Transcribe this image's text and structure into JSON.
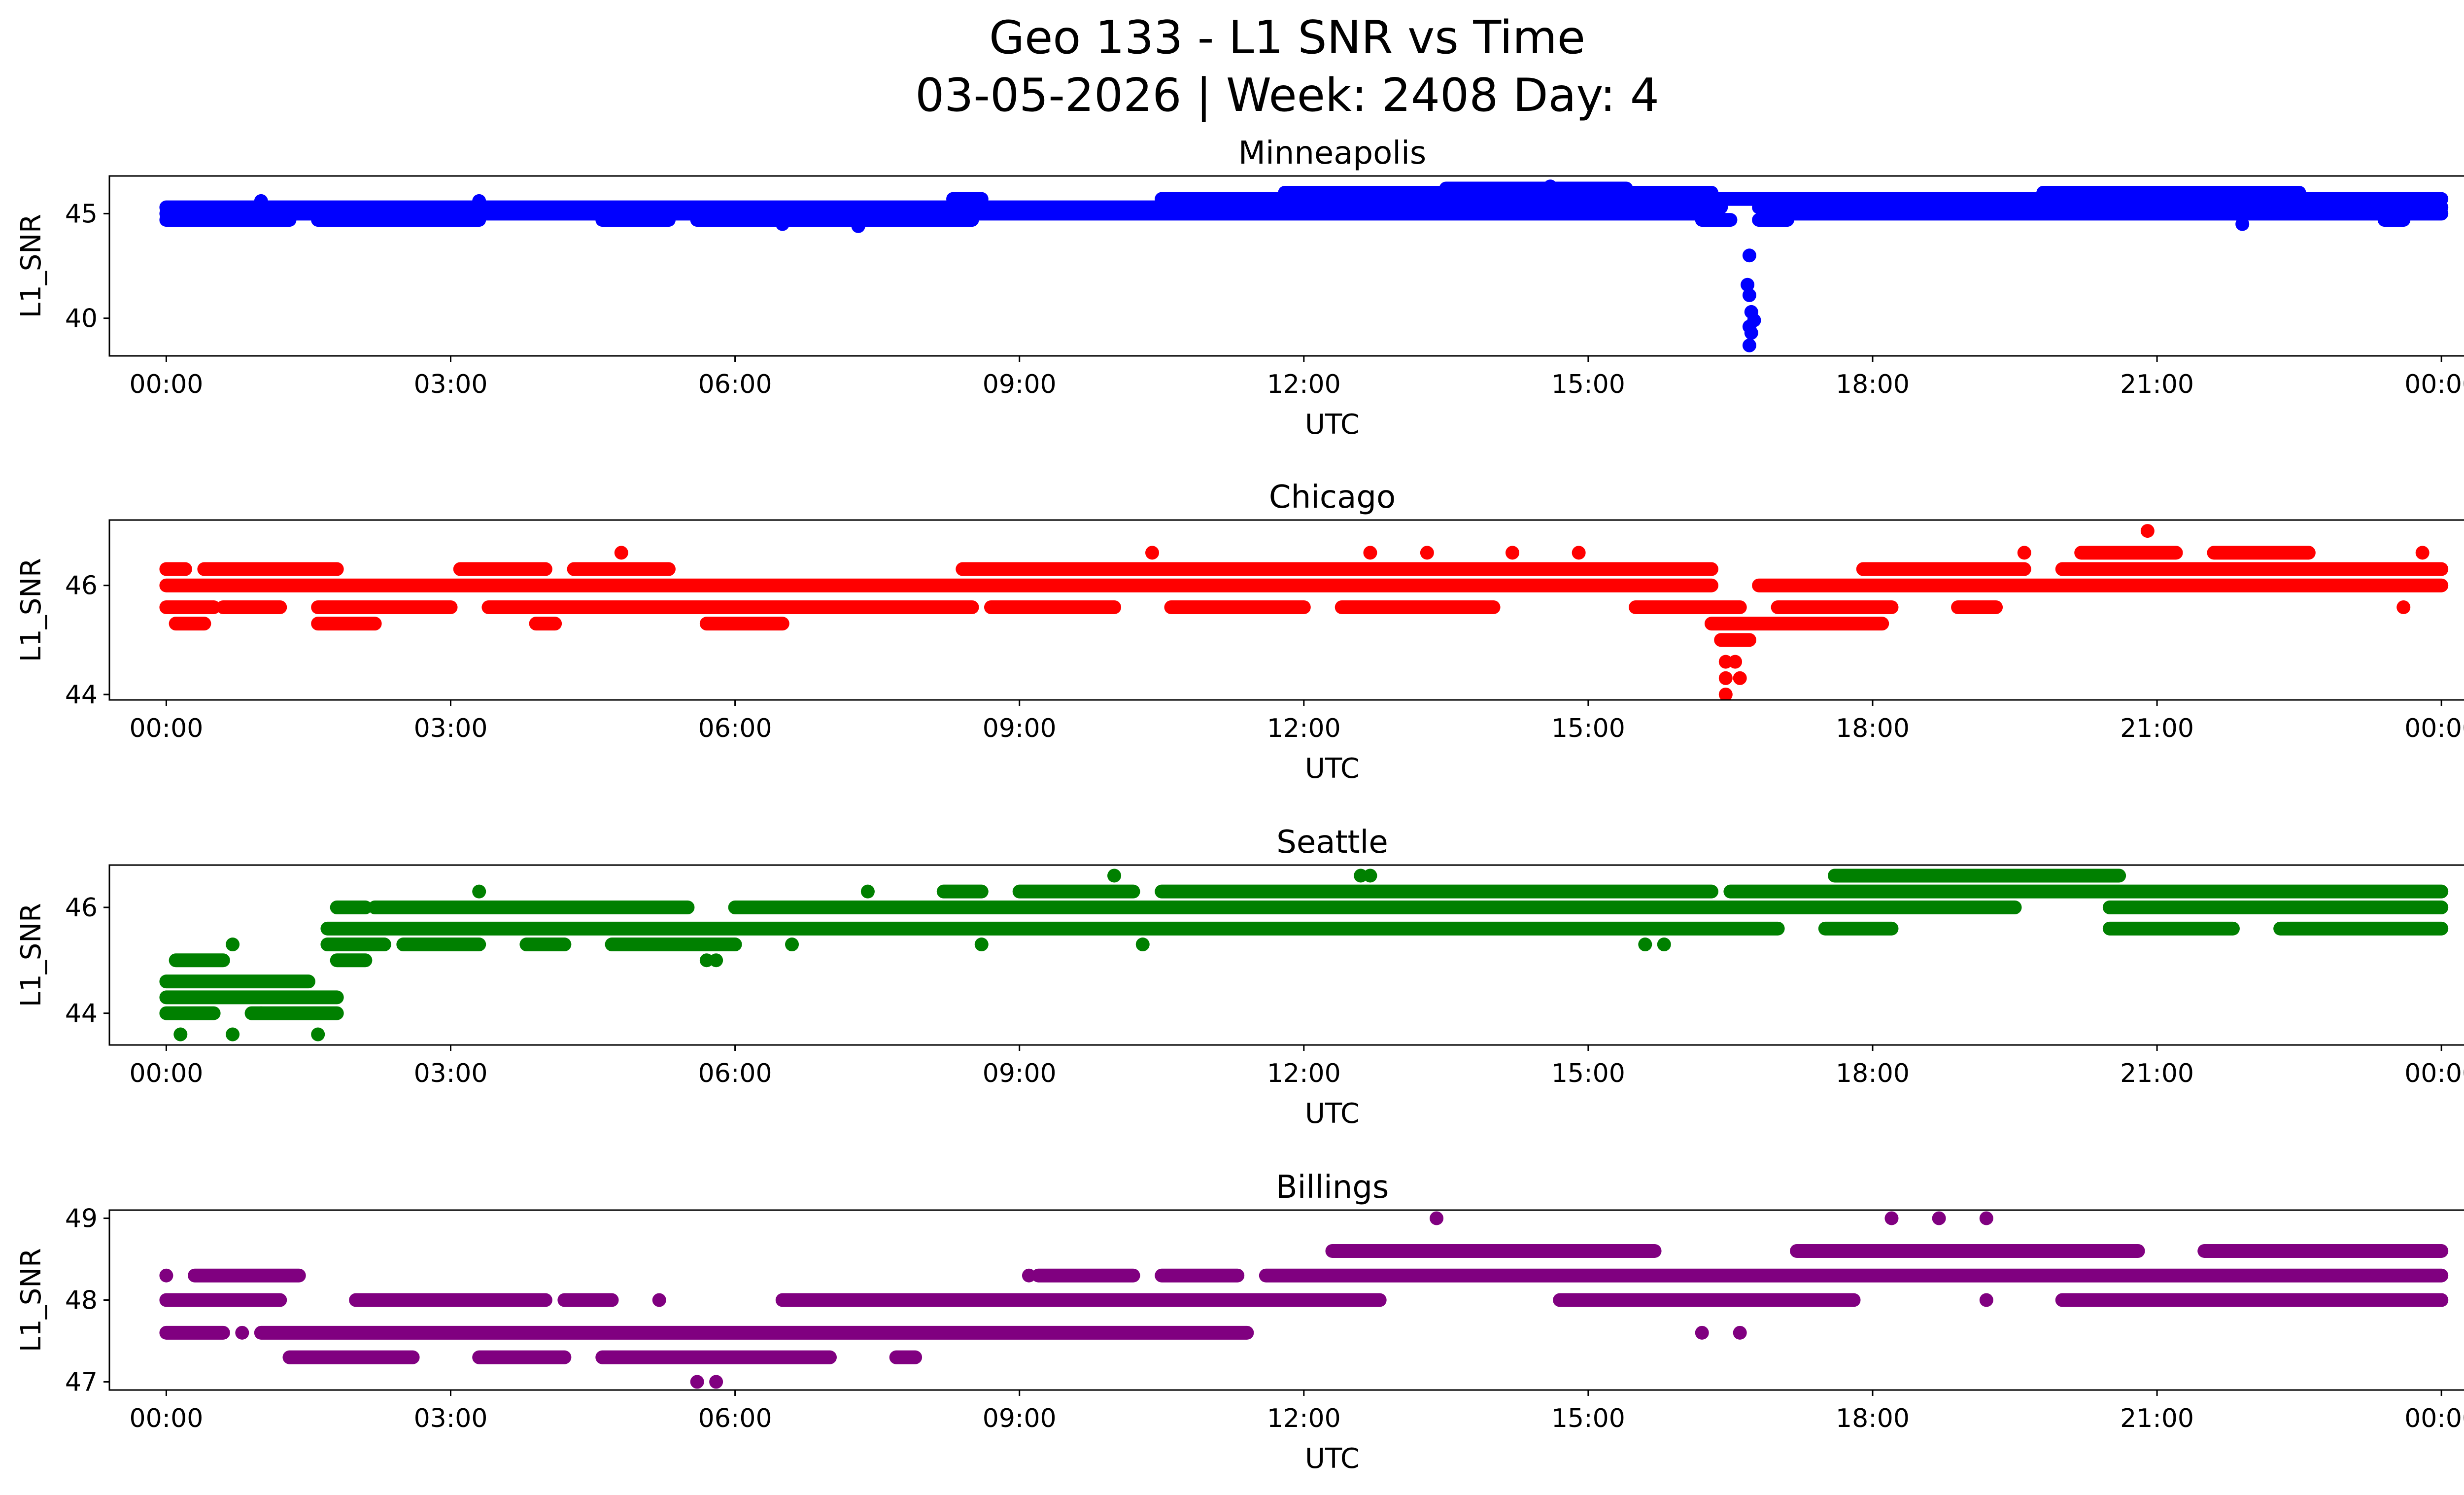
{
  "title_line1": "Geo 133 - L1 SNR vs Time",
  "title_line2": "03-05-2026 | Week: 2408 Day: 4",
  "chart_data": [
    {
      "type": "scatter",
      "title": "Minneapolis",
      "xlabel": "UTC",
      "ylabel": "L1_SNR",
      "color": "#0000ff",
      "xlim": [
        -0.6,
        25.2
      ],
      "ylim": [
        38.2,
        46.8
      ],
      "yticks": [
        40,
        45
      ],
      "xticks": [
        0,
        3,
        6,
        9,
        12,
        15,
        18,
        21,
        24
      ],
      "xtick_labels": [
        "00:00",
        "03:00",
        "06:00",
        "09:00",
        "12:00",
        "15:00",
        "18:00",
        "21:00",
        "00:00"
      ],
      "levels": [
        {
          "y": 45.3,
          "ranges": [
            [
              0,
              16.4
            ],
            [
              16.8,
              24
            ]
          ]
        },
        {
          "y": 45.0,
          "ranges": [
            [
              0,
              16.3
            ],
            [
              16.9,
              24
            ]
          ]
        },
        {
          "y": 44.7,
          "ranges": [
            [
              0,
              1.3
            ],
            [
              1.6,
              3.3
            ],
            [
              4.6,
              5.3
            ],
            [
              5.6,
              8.5
            ],
            [
              16.2,
              16.5
            ],
            [
              16.8,
              17.1
            ],
            [
              23.4,
              23.6
            ]
          ]
        },
        {
          "y": 45.7,
          "ranges": [
            [
              8.3,
              8.6
            ],
            [
              10.5,
              24
            ]
          ]
        },
        {
          "y": 46.0,
          "ranges": [
            [
              11.8,
              16.3
            ],
            [
              19.8,
              22.5
            ]
          ]
        },
        {
          "y": 46.2,
          "ranges": [
            [
              13.5,
              15.4
            ]
          ]
        }
      ],
      "points": [
        [
          1.0,
          45.6
        ],
        [
          3.3,
          45.6
        ],
        [
          6.5,
          44.5
        ],
        [
          7.3,
          44.4
        ],
        [
          11.8,
          45.9
        ],
        [
          14.6,
          46.3
        ],
        [
          16.7,
          43.0
        ],
        [
          16.68,
          41.6
        ],
        [
          16.7,
          41.1
        ],
        [
          16.72,
          40.3
        ],
        [
          16.75,
          39.9
        ],
        [
          16.7,
          39.6
        ],
        [
          16.72,
          39.3
        ],
        [
          16.7,
          38.7
        ],
        [
          21.9,
          44.5
        ]
      ]
    },
    {
      "type": "scatter",
      "title": "Chicago",
      "xlabel": "UTC",
      "ylabel": "L1_SNR",
      "color": "#ff0000",
      "xlim": [
        -0.6,
        25.2
      ],
      "ylim": [
        43.9,
        47.2
      ],
      "yticks": [
        44,
        46
      ],
      "xticks": [
        0,
        3,
        6,
        9,
        12,
        15,
        18,
        21,
        24
      ],
      "xtick_labels": [
        "00:00",
        "03:00",
        "06:00",
        "09:00",
        "12:00",
        "15:00",
        "18:00",
        "21:00",
        "00:00"
      ],
      "levels": [
        {
          "y": 46.0,
          "ranges": [
            [
              0,
              16.3
            ],
            [
              16.8,
              24
            ]
          ]
        },
        {
          "y": 45.6,
          "ranges": [
            [
              0,
              0.5
            ],
            [
              0.6,
              1.2
            ],
            [
              1.6,
              3.0
            ],
            [
              3.4,
              8.5
            ],
            [
              8.7,
              10.0
            ],
            [
              10.6,
              12.0
            ],
            [
              12.4,
              14.0
            ],
            [
              15.5,
              16.6
            ],
            [
              17.0,
              18.2
            ],
            [
              18.9,
              19.3
            ]
          ]
        },
        {
          "y": 46.3,
          "ranges": [
            [
              0,
              0.2
            ],
            [
              0.4,
              1.8
            ],
            [
              3.1,
              4.0
            ],
            [
              4.3,
              5.3
            ],
            [
              8.4,
              16.3
            ],
            [
              17.9,
              19.6
            ],
            [
              20.0,
              24
            ]
          ]
        },
        {
          "y": 45.3,
          "ranges": [
            [
              0.1,
              0.4
            ],
            [
              1.6,
              2.2
            ],
            [
              3.9,
              4.1
            ],
            [
              5.7,
              6.5
            ],
            [
              16.3,
              18.1
            ]
          ]
        },
        {
          "y": 46.6,
          "ranges": [
            [
              20.2,
              21.2
            ],
            [
              21.6,
              22.6
            ]
          ]
        },
        {
          "y": 45.0,
          "ranges": [
            [
              16.4,
              16.7
            ]
          ]
        }
      ],
      "points": [
        [
          4.8,
          46.6
        ],
        [
          10.4,
          46.6
        ],
        [
          12.7,
          46.6
        ],
        [
          13.3,
          46.6
        ],
        [
          14.2,
          46.6
        ],
        [
          14.9,
          46.6
        ],
        [
          19.6,
          46.6
        ],
        [
          20.9,
          47.0
        ],
        [
          23.8,
          46.6
        ],
        [
          23.6,
          45.6
        ],
        [
          16.45,
          44.6
        ],
        [
          16.55,
          44.6
        ],
        [
          16.45,
          44.3
        ],
        [
          16.6,
          44.3
        ],
        [
          16.45,
          44.0
        ]
      ]
    },
    {
      "type": "scatter",
      "title": "Seattle",
      "xlabel": "UTC",
      "ylabel": "L1_SNR",
      "color": "#008000",
      "xlim": [
        -0.6,
        25.2
      ],
      "ylim": [
        43.4,
        46.8
      ],
      "yticks": [
        44,
        46
      ],
      "xticks": [
        0,
        3,
        6,
        9,
        12,
        15,
        18,
        21,
        24
      ],
      "xtick_labels": [
        "00:00",
        "03:00",
        "06:00",
        "09:00",
        "12:00",
        "15:00",
        "18:00",
        "21:00",
        "00:00"
      ],
      "levels": [
        {
          "y": 44.6,
          "ranges": [
            [
              0,
              1.5
            ]
          ]
        },
        {
          "y": 44.3,
          "ranges": [
            [
              0,
              1.8
            ]
          ]
        },
        {
          "y": 44.0,
          "ranges": [
            [
              0,
              0.5
            ],
            [
              0.9,
              1.0
            ],
            [
              1.0,
              1.8
            ]
          ]
        },
        {
          "y": 45.0,
          "ranges": [
            [
              0.1,
              0.6
            ],
            [
              1.8,
              2.1
            ]
          ]
        },
        {
          "y": 45.3,
          "ranges": [
            [
              1.7,
              2.3
            ],
            [
              2.5,
              3.3
            ],
            [
              3.8,
              4.2
            ],
            [
              4.7,
              6.0
            ]
          ]
        },
        {
          "y": 45.6,
          "ranges": [
            [
              1.7,
              17.0
            ],
            [
              17.5,
              18.2
            ],
            [
              20.5,
              21.8
            ],
            [
              22.3,
              24
            ]
          ]
        },
        {
          "y": 46.0,
          "ranges": [
            [
              1.8,
              2.1
            ],
            [
              2.2,
              5.5
            ],
            [
              6.0,
              19.5
            ],
            [
              20.5,
              24
            ]
          ]
        },
        {
          "y": 46.3,
          "ranges": [
            [
              8.2,
              8.6
            ],
            [
              9.0,
              10.2
            ],
            [
              10.5,
              16.3
            ],
            [
              16.5,
              24
            ]
          ]
        },
        {
          "y": 46.6,
          "ranges": [
            [
              17.6,
              20.6
            ]
          ]
        }
      ],
      "points": [
        [
          0.7,
          45.3
        ],
        [
          0.15,
          43.6
        ],
        [
          0.7,
          43.6
        ],
        [
          1.6,
          43.6
        ],
        [
          3.3,
          46.3
        ],
        [
          5.7,
          45.0
        ],
        [
          5.8,
          45.0
        ],
        [
          6.6,
          45.3
        ],
        [
          7.4,
          46.3
        ],
        [
          8.6,
          45.3
        ],
        [
          10.0,
          46.6
        ],
        [
          10.3,
          45.3
        ],
        [
          12.6,
          46.6
        ],
        [
          12.7,
          46.6
        ],
        [
          15.6,
          45.3
        ],
        [
          15.8,
          45.3
        ]
      ]
    },
    {
      "type": "scatter",
      "title": "Billings",
      "xlabel": "UTC",
      "ylabel": "L1_SNR",
      "color": "#800080",
      "xlim": [
        -0.6,
        25.2
      ],
      "ylim": [
        46.9,
        49.1
      ],
      "yticks": [
        47,
        48,
        49
      ],
      "xticks": [
        0,
        3,
        6,
        9,
        12,
        15,
        18,
        21,
        24
      ],
      "xtick_labels": [
        "00:00",
        "03:00",
        "06:00",
        "09:00",
        "12:00",
        "15:00",
        "18:00",
        "21:00",
        "00:00"
      ],
      "levels": [
        {
          "y": 48.3,
          "ranges": [
            [
              0.3,
              1.4
            ],
            [
              9.2,
              10.2
            ],
            [
              10.5,
              11.3
            ],
            [
              11.6,
              24
            ]
          ]
        },
        {
          "y": 48.0,
          "ranges": [
            [
              0,
              1.2
            ],
            [
              2.0,
              4.0
            ],
            [
              4.2,
              4.7
            ],
            [
              6.5,
              12.8
            ],
            [
              14.7,
              17.8
            ],
            [
              20.0,
              24
            ]
          ]
        },
        {
          "y": 47.6,
          "ranges": [
            [
              0,
              0.6
            ],
            [
              1.0,
              11.4
            ]
          ]
        },
        {
          "y": 48.6,
          "ranges": [
            [
              12.3,
              15.7
            ],
            [
              17.2,
              20.8
            ],
            [
              21.5,
              24
            ]
          ]
        },
        {
          "y": 47.3,
          "ranges": [
            [
              1.3,
              2.6
            ],
            [
              3.3,
              4.2
            ],
            [
              4.6,
              7.0
            ],
            [
              7.7,
              7.9
            ]
          ]
        }
      ],
      "points": [
        [
          0,
          48.3
        ],
        [
          0.8,
          47.6
        ],
        [
          5.2,
          48.0
        ],
        [
          5.6,
          47.0
        ],
        [
          5.8,
          47.0
        ],
        [
          9.1,
          48.3
        ],
        [
          13.4,
          49.0
        ],
        [
          16.2,
          47.6
        ],
        [
          16.6,
          47.6
        ],
        [
          18.2,
          49.0
        ],
        [
          18.7,
          49.0
        ],
        [
          19.2,
          49.0
        ],
        [
          19.2,
          48.0
        ],
        [
          21.8,
          48.0
        ],
        [
          24,
          48.0
        ]
      ]
    }
  ]
}
